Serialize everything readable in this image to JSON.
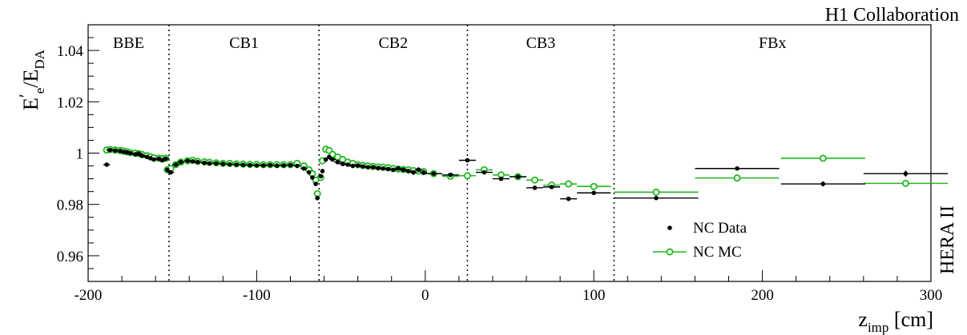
{
  "chart_data": {
    "type": "scatter",
    "title": "H1 Collaboration",
    "side_label": "HERA II",
    "ylabel": "E′e/EDA",
    "ylabel_parts": {
      "main": "E",
      "prime": "′",
      "sub1": "e",
      "sep": "/E",
      "sub2": "DA"
    },
    "xlabel_parts": {
      "main": "z",
      "sub": "imp",
      "unit": " [cm]"
    },
    "xlim": [
      -200,
      300
    ],
    "ylim": [
      0.95,
      1.05
    ],
    "x_ticks": [
      -200,
      -100,
      0,
      100,
      200,
      300
    ],
    "x_tick_labels": [
      "-200",
      "-100",
      "0",
      "100",
      "200",
      "300"
    ],
    "y_ticks": [
      0.96,
      0.98,
      1.0,
      1.02,
      1.04
    ],
    "y_tick_labels": [
      "0.96",
      "0.98",
      "1",
      "1.02",
      "1.04"
    ],
    "regions": [
      {
        "name": "BBE",
        "from": -200,
        "to": -152
      },
      {
        "name": "CB1",
        "from": -152,
        "to": -63
      },
      {
        "name": "CB2",
        "from": -63,
        "to": 25
      },
      {
        "name": "CB3",
        "from": 25,
        "to": 112
      },
      {
        "name": "FBx",
        "from": 112,
        "to": 300
      }
    ],
    "region_boundaries": [
      -152,
      -63,
      25,
      112
    ],
    "legend": {
      "position": "bottom-right",
      "entries": [
        "NC Data",
        "NC MC"
      ]
    },
    "colors": {
      "data": "#000000",
      "mc": "#22b822"
    },
    "series": [
      {
        "name": "NC Data",
        "marker": "filled-circle",
        "x": [
          -189,
          -187,
          -184,
          -181,
          -179,
          -177,
          -175,
          -172,
          -170,
          -168,
          -165,
          -163,
          -161,
          -158,
          -156,
          -154,
          -153,
          -151,
          -148,
          -145,
          -141,
          -138,
          -135,
          -131,
          -128,
          -124,
          -120,
          -116,
          -112,
          -108,
          -104,
          -100,
          -96,
          -92,
          -88,
          -84,
          -80,
          -76,
          -72,
          -69,
          -67,
          -65,
          -64,
          -62,
          -61,
          -59,
          -57,
          -55,
          -52,
          -49,
          -46,
          -43,
          -40,
          -37,
          -34,
          -31,
          -28,
          -25,
          -22,
          -19,
          -16,
          -13,
          -10,
          -7,
          -4,
          -1,
          5,
          15,
          25,
          35,
          45,
          55,
          65,
          75,
          85,
          100,
          137,
          185,
          236,
          285
        ],
        "y": [
          0.9955,
          1.0012,
          1.001,
          1.0008,
          1.0005,
          1.0003,
          1.0,
          0.9995,
          0.9998,
          0.999,
          0.9985,
          0.998,
          0.9975,
          0.9978,
          0.9972,
          0.9978,
          0.9935,
          0.9925,
          0.9955,
          0.9965,
          0.997,
          0.9968,
          0.9965,
          0.9962,
          0.996,
          0.996,
          0.9958,
          0.9956,
          0.9955,
          0.9954,
          0.9953,
          0.9952,
          0.9952,
          0.9953,
          0.9951,
          0.9952,
          0.9953,
          0.995,
          0.994,
          0.9925,
          0.9905,
          0.988,
          0.9825,
          0.991,
          0.993,
          0.9975,
          0.9985,
          0.9975,
          0.9965,
          0.9958,
          0.9955,
          0.995,
          0.9952,
          0.9948,
          0.9945,
          0.9945,
          0.9942,
          0.994,
          0.9938,
          0.9935,
          0.994,
          0.9935,
          0.993,
          0.9925,
          0.9935,
          0.9925,
          0.992,
          0.9915,
          0.9972,
          0.9925,
          0.99,
          0.9908,
          0.9865,
          0.9868,
          0.9822,
          0.9845,
          0.9825,
          0.994,
          0.988,
          0.992
        ],
        "x_err": [
          2,
          2,
          2,
          2,
          2,
          2,
          2,
          2,
          2,
          2,
          2,
          2,
          2,
          2,
          2,
          2,
          1,
          2,
          2,
          2,
          2,
          2,
          2,
          2,
          2,
          2,
          2,
          2,
          2,
          2,
          2,
          2,
          2,
          2,
          2,
          2,
          2,
          2,
          2,
          1,
          1,
          1,
          1,
          1,
          1,
          1,
          1,
          2,
          2,
          2,
          2,
          2,
          2,
          2,
          2,
          2,
          2,
          2,
          2,
          2,
          2,
          2,
          2,
          2,
          2,
          2,
          5,
          5,
          5,
          5,
          5,
          5,
          5,
          5,
          5,
          10,
          25,
          25,
          25,
          25
        ],
        "y_err": [
          0.0004,
          0.0004,
          0.0004,
          0.0004,
          0.0004,
          0.0004,
          0.0004,
          0.0004,
          0.0004,
          0.0004,
          0.0004,
          0.0004,
          0.0004,
          0.0004,
          0.0004,
          0.0004,
          0.0005,
          0.0005,
          0.0004,
          0.0004,
          0.0004,
          0.0004,
          0.0004,
          0.0004,
          0.0004,
          0.0004,
          0.0004,
          0.0004,
          0.0004,
          0.0004,
          0.0004,
          0.0004,
          0.0004,
          0.0004,
          0.0004,
          0.0004,
          0.0004,
          0.0004,
          0.0005,
          0.0006,
          0.0008,
          0.0008,
          0.0009,
          0.0006,
          0.0005,
          0.0005,
          0.0005,
          0.0005,
          0.0006,
          0.0006,
          0.0006,
          0.0006,
          0.0006,
          0.0006,
          0.0006,
          0.0007,
          0.0007,
          0.0007,
          0.0008,
          0.0008,
          0.0008,
          0.0009,
          0.0009,
          0.001,
          0.001,
          0.001,
          0.0003,
          0.0003,
          0.0003,
          0.0003,
          0.0003,
          0.0003,
          0.0003,
          0.0003,
          0.0004,
          0.0004,
          0.0004,
          0.0008,
          0.001,
          0.0012
        ]
      },
      {
        "name": "NC MC",
        "marker": "open-circle",
        "x": [
          -189,
          -187,
          -184,
          -181,
          -179,
          -177,
          -175,
          -172,
          -170,
          -168,
          -165,
          -163,
          -161,
          -158,
          -156,
          -154,
          -153,
          -151,
          -148,
          -145,
          -141,
          -138,
          -135,
          -131,
          -128,
          -124,
          -120,
          -116,
          -112,
          -108,
          -104,
          -100,
          -96,
          -92,
          -88,
          -84,
          -80,
          -76,
          -72,
          -69,
          -67,
          -65,
          -64,
          -62,
          -61,
          -59,
          -57,
          -55,
          -52,
          -49,
          -46,
          -43,
          -40,
          -37,
          -34,
          -31,
          -28,
          -25,
          -22,
          -19,
          -16,
          -13,
          -10,
          -7,
          -4,
          -1,
          5,
          15,
          25,
          35,
          45,
          55,
          65,
          75,
          85,
          100,
          137,
          185,
          236,
          285
        ],
        "y": [
          1.0012,
          1.0014,
          1.0012,
          1.001,
          1.0008,
          1.0005,
          1.0002,
          1.0,
          0.9998,
          0.9994,
          0.999,
          0.9986,
          0.9982,
          0.998,
          0.9978,
          0.998,
          0.9935,
          0.994,
          0.9955,
          0.9965,
          0.997,
          0.9972,
          0.9968,
          0.9966,
          0.9964,
          0.9962,
          0.996,
          0.996,
          0.9958,
          0.9957,
          0.9956,
          0.9956,
          0.9955,
          0.9955,
          0.9955,
          0.9955,
          0.9955,
          0.996,
          0.995,
          0.9935,
          0.992,
          0.9895,
          0.9842,
          0.9905,
          0.997,
          1.0015,
          1.001,
          0.9995,
          0.9985,
          0.9975,
          0.9965,
          0.996,
          0.9955,
          0.9952,
          0.995,
          0.9948,
          0.9946,
          0.9945,
          0.9943,
          0.994,
          0.9938,
          0.9936,
          0.9935,
          0.9932,
          0.993,
          0.9928,
          0.992,
          0.991,
          0.9912,
          0.9935,
          0.9915,
          0.9908,
          0.9895,
          0.9875,
          0.988,
          0.987,
          0.9848,
          0.9903,
          0.998,
          0.9882
        ],
        "x_err": [
          2,
          2,
          2,
          2,
          2,
          2,
          2,
          2,
          2,
          2,
          2,
          2,
          2,
          2,
          2,
          2,
          1,
          2,
          2,
          2,
          2,
          2,
          2,
          2,
          2,
          2,
          2,
          2,
          2,
          2,
          2,
          2,
          2,
          2,
          2,
          2,
          2,
          2,
          2,
          1,
          1,
          1,
          1,
          1,
          1,
          1,
          1,
          2,
          2,
          2,
          2,
          2,
          2,
          2,
          2,
          2,
          2,
          2,
          2,
          2,
          2,
          2,
          2,
          2,
          2,
          2,
          5,
          5,
          5,
          5,
          5,
          5,
          5,
          5,
          5,
          10,
          25,
          25,
          25,
          25
        ]
      }
    ]
  }
}
